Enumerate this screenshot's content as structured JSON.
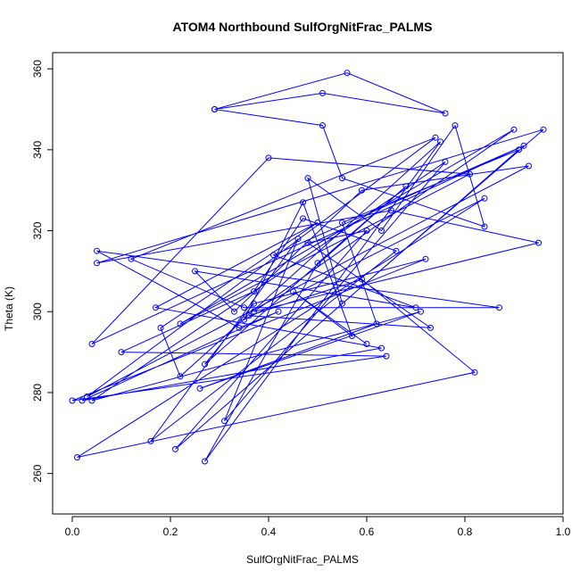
{
  "chart_data": {
    "type": "line",
    "title": "ATOM4 Northbound SulfOrgNitFrac_PALMS",
    "xlabel": "SulfOrgNitFrac_PALMS",
    "ylabel": "Theta (K)",
    "xlim": [
      -0.04,
      1.0
    ],
    "ylim": [
      250,
      364
    ],
    "xticks": [
      0.0,
      0.2,
      0.4,
      0.6,
      0.8,
      1.0
    ],
    "xtick_labels": [
      "0.0",
      "0.2",
      "0.4",
      "0.6",
      "0.8",
      "1.0"
    ],
    "yticks": [
      260,
      280,
      300,
      320,
      340,
      360
    ],
    "ytick_labels": [
      "260",
      "280",
      "300",
      "320",
      "340",
      "360"
    ],
    "grid": false,
    "marker": "open-circle",
    "color": "#0000ff",
    "series": [
      {
        "x": [
          0.29,
          0.51,
          0.76,
          0.56,
          0.29,
          0.51,
          0.55,
          0.84,
          0.78,
          0.63,
          0.48,
          0.55,
          0.96,
          0.05,
          0.65,
          0.95,
          0.37,
          0.9,
          0.22,
          0.81,
          0.4,
          0.04,
          0.92,
          0.41,
          0.7,
          0.25,
          0.33,
          0.59,
          0.93,
          0.03,
          0.74,
          0.12,
          0.35,
          0.87,
          0.05,
          0.34,
          0.42,
          0.02,
          0.63,
          0.17,
          0.5,
          0.18,
          0.22,
          0.75,
          0.27,
          0.5,
          0.68,
          0.27,
          0.37,
          0.72,
          0.0,
          0.64,
          0.1,
          0.37,
          0.47,
          0.66,
          0.16,
          0.46,
          0.31,
          0.76,
          0.04,
          0.71,
          0.26,
          0.62,
          0.55,
          0.91,
          0.21,
          0.6,
          0.48,
          0.73,
          0.36,
          0.59,
          0.82,
          0.01,
          0.84,
          0.35,
          0.47,
          0.57,
          0.45,
          0.6
        ],
        "y": [
          350,
          354,
          349,
          359,
          350,
          346,
          333,
          321,
          346,
          320,
          333,
          302,
          345,
          312,
          325,
          317,
          300,
          345,
          297,
          334,
          338,
          292,
          341,
          314,
          301,
          310,
          300,
          330,
          336,
          279,
          343,
          313,
          301,
          301,
          315,
          296,
          300,
          278,
          291,
          301,
          322,
          296,
          284,
          342,
          263,
          312,
          331,
          287,
          302,
          313,
          278,
          289,
          290,
          305,
          323,
          315,
          268,
          318,
          273,
          337,
          278,
          300,
          281,
          297,
          322,
          340,
          266,
          320,
          317,
          296,
          299,
          308,
          285,
          264,
          328,
          298,
          327,
          294,
          305,
          292
        ]
      }
    ]
  }
}
